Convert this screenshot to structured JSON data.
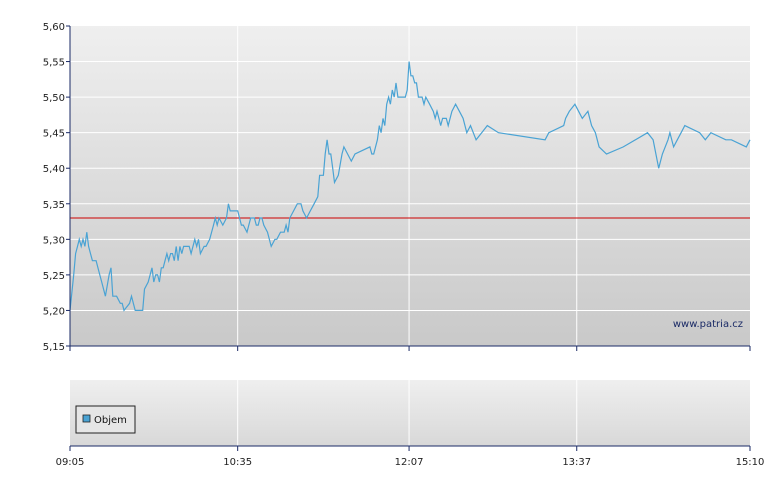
{
  "chart_data": {
    "type": "line",
    "title": "",
    "xlabel": "",
    "ylabel": "",
    "ylim": [
      5.15,
      5.6
    ],
    "y_ticks": [
      "5,60",
      "5,55",
      "5,50",
      "5,45",
      "5,40",
      "5,35",
      "5,30",
      "5,25",
      "5,20",
      "5,15"
    ],
    "x_ticks": [
      "09:05",
      "10:35",
      "12:07",
      "13:37",
      "15:10"
    ],
    "x_range": [
      "09:05",
      "15:10"
    ],
    "grid": true,
    "reference_line": {
      "value": 5.33,
      "color": "#cc0000"
    },
    "series": [
      {
        "color": "#4aa3d4",
        "points": [
          [
            "09:05",
            5.2
          ],
          [
            "09:07",
            5.25
          ],
          [
            "09:08",
            5.28
          ],
          [
            "09:09",
            5.29
          ],
          [
            "09:10",
            5.3
          ],
          [
            "09:11",
            5.29
          ],
          [
            "09:12",
            5.3
          ],
          [
            "09:13",
            5.29
          ],
          [
            "09:14",
            5.31
          ],
          [
            "09:15",
            5.29
          ],
          [
            "09:16",
            5.28
          ],
          [
            "09:17",
            5.27
          ],
          [
            "09:19",
            5.27
          ],
          [
            "09:21",
            5.25
          ],
          [
            "09:22",
            5.24
          ],
          [
            "09:24",
            5.22
          ],
          [
            "09:26",
            5.25
          ],
          [
            "09:27",
            5.26
          ],
          [
            "09:28",
            5.22
          ],
          [
            "09:30",
            5.22
          ],
          [
            "09:32",
            5.21
          ],
          [
            "09:33",
            5.21
          ],
          [
            "09:34",
            5.2
          ],
          [
            "09:37",
            5.21
          ],
          [
            "09:38",
            5.22
          ],
          [
            "09:40",
            5.2
          ],
          [
            "09:44",
            5.2
          ],
          [
            "09:45",
            5.23
          ],
          [
            "09:47",
            5.24
          ],
          [
            "09:48",
            5.25
          ],
          [
            "09:49",
            5.26
          ],
          [
            "09:50",
            5.24
          ],
          [
            "09:51",
            5.25
          ],
          [
            "09:52",
            5.25
          ],
          [
            "09:53",
            5.24
          ],
          [
            "09:54",
            5.26
          ],
          [
            "09:55",
            5.26
          ],
          [
            "09:56",
            5.27
          ],
          [
            "09:57",
            5.28
          ],
          [
            "09:58",
            5.27
          ],
          [
            "09:59",
            5.28
          ],
          [
            "10:00",
            5.28
          ],
          [
            "10:01",
            5.27
          ],
          [
            "10:02",
            5.29
          ],
          [
            "10:03",
            5.27
          ],
          [
            "10:04",
            5.29
          ],
          [
            "10:05",
            5.28
          ],
          [
            "10:06",
            5.29
          ],
          [
            "10:08",
            5.29
          ],
          [
            "10:09",
            5.29
          ],
          [
            "10:10",
            5.28
          ],
          [
            "10:12",
            5.3
          ],
          [
            "10:13",
            5.29
          ],
          [
            "10:14",
            5.3
          ],
          [
            "10:15",
            5.28
          ],
          [
            "10:17",
            5.29
          ],
          [
            "10:18",
            5.29
          ],
          [
            "10:20",
            5.3
          ],
          [
            "10:22",
            5.32
          ],
          [
            "10:23",
            5.33
          ],
          [
            "10:24",
            5.32
          ],
          [
            "10:25",
            5.33
          ],
          [
            "10:27",
            5.32
          ],
          [
            "10:29",
            5.33
          ],
          [
            "10:30",
            5.35
          ],
          [
            "10:31",
            5.34
          ],
          [
            "10:33",
            5.34
          ],
          [
            "10:35",
            5.34
          ],
          [
            "10:37",
            5.32
          ],
          [
            "10:38",
            5.32
          ],
          [
            "10:40",
            5.31
          ],
          [
            "10:41",
            5.32
          ],
          [
            "10:42",
            5.33
          ],
          [
            "10:44",
            5.33
          ],
          [
            "10:45",
            5.32
          ],
          [
            "10:46",
            5.32
          ],
          [
            "10:47",
            5.33
          ],
          [
            "10:48",
            5.33
          ],
          [
            "10:49",
            5.32
          ],
          [
            "10:51",
            5.31
          ],
          [
            "10:53",
            5.29
          ],
          [
            "10:55",
            5.3
          ],
          [
            "10:56",
            5.3
          ],
          [
            "10:58",
            5.31
          ],
          [
            "11:00",
            5.31
          ],
          [
            "11:01",
            5.32
          ],
          [
            "11:02",
            5.31
          ],
          [
            "11:03",
            5.33
          ],
          [
            "11:05",
            5.34
          ],
          [
            "11:07",
            5.35
          ],
          [
            "11:09",
            5.35
          ],
          [
            "11:10",
            5.34
          ],
          [
            "11:12",
            5.33
          ],
          [
            "11:14",
            5.34
          ],
          [
            "11:16",
            5.35
          ],
          [
            "11:18",
            5.36
          ],
          [
            "11:19",
            5.39
          ],
          [
            "11:21",
            5.39
          ],
          [
            "11:22",
            5.42
          ],
          [
            "11:23",
            5.44
          ],
          [
            "11:24",
            5.42
          ],
          [
            "11:25",
            5.42
          ],
          [
            "11:26",
            5.4
          ],
          [
            "11:27",
            5.38
          ],
          [
            "11:29",
            5.39
          ],
          [
            "11:31",
            5.42
          ],
          [
            "11:32",
            5.43
          ],
          [
            "11:34",
            5.42
          ],
          [
            "11:36",
            5.41
          ],
          [
            "11:38",
            5.42
          ],
          [
            "11:46",
            5.43
          ],
          [
            "11:47",
            5.42
          ],
          [
            "11:48",
            5.42
          ],
          [
            "11:50",
            5.44
          ],
          [
            "11:51",
            5.46
          ],
          [
            "11:52",
            5.45
          ],
          [
            "11:53",
            5.47
          ],
          [
            "11:54",
            5.46
          ],
          [
            "11:55",
            5.49
          ],
          [
            "11:56",
            5.5
          ],
          [
            "11:57",
            5.49
          ],
          [
            "11:58",
            5.51
          ],
          [
            "11:59",
            5.5
          ],
          [
            "12:00",
            5.52
          ],
          [
            "12:01",
            5.5
          ],
          [
            "12:03",
            5.5
          ],
          [
            "12:05",
            5.5
          ],
          [
            "12:06",
            5.51
          ],
          [
            "12:07",
            5.55
          ],
          [
            "12:08",
            5.53
          ],
          [
            "12:09",
            5.53
          ],
          [
            "12:10",
            5.52
          ],
          [
            "12:11",
            5.52
          ],
          [
            "12:12",
            5.5
          ],
          [
            "12:13",
            5.5
          ],
          [
            "12:14",
            5.5
          ],
          [
            "12:15",
            5.49
          ],
          [
            "12:16",
            5.5
          ],
          [
            "12:18",
            5.49
          ],
          [
            "12:20",
            5.48
          ],
          [
            "12:21",
            5.47
          ],
          [
            "12:22",
            5.48
          ],
          [
            "12:23",
            5.47
          ],
          [
            "12:24",
            5.46
          ],
          [
            "12:25",
            5.47
          ],
          [
            "12:27",
            5.47
          ],
          [
            "12:28",
            5.46
          ],
          [
            "12:30",
            5.48
          ],
          [
            "12:32",
            5.49
          ],
          [
            "12:34",
            5.48
          ],
          [
            "12:36",
            5.47
          ],
          [
            "12:38",
            5.45
          ],
          [
            "12:40",
            5.46
          ],
          [
            "12:43",
            5.44
          ],
          [
            "12:46",
            5.45
          ],
          [
            "12:49",
            5.46
          ],
          [
            "12:55",
            5.45
          ],
          [
            "13:20",
            5.44
          ],
          [
            "13:22",
            5.45
          ],
          [
            "13:30",
            5.46
          ],
          [
            "13:31",
            5.47
          ],
          [
            "13:33",
            5.48
          ],
          [
            "13:36",
            5.49
          ],
          [
            "13:38",
            5.48
          ],
          [
            "13:40",
            5.47
          ],
          [
            "13:43",
            5.48
          ],
          [
            "13:45",
            5.46
          ],
          [
            "13:47",
            5.45
          ],
          [
            "13:49",
            5.43
          ],
          [
            "13:53",
            5.42
          ],
          [
            "14:02",
            5.43
          ],
          [
            "14:15",
            5.45
          ],
          [
            "14:18",
            5.44
          ],
          [
            "14:21",
            5.4
          ],
          [
            "14:23",
            5.42
          ],
          [
            "14:26",
            5.44
          ],
          [
            "14:27",
            5.45
          ],
          [
            "14:29",
            5.43
          ],
          [
            "14:31",
            5.44
          ],
          [
            "14:33",
            5.45
          ],
          [
            "14:35",
            5.46
          ],
          [
            "14:43",
            5.45
          ],
          [
            "14:46",
            5.44
          ],
          [
            "14:49",
            5.45
          ],
          [
            "14:57",
            5.44
          ],
          [
            "15:00",
            5.44
          ],
          [
            "15:08",
            5.43
          ],
          [
            "15:10",
            5.44
          ]
        ]
      }
    ],
    "watermark": "www.patria.cz",
    "lower_panel": {
      "legend": [
        {
          "label": "Objem",
          "color": "#4aa3d4"
        }
      ],
      "values": []
    }
  }
}
